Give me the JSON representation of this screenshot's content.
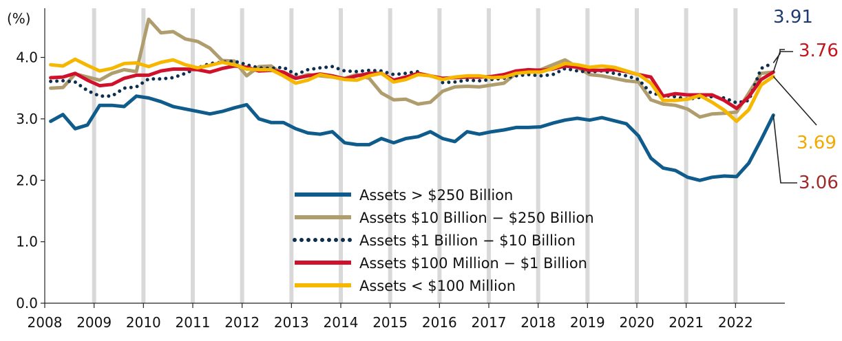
{
  "chart_data": {
    "type": "line",
    "unit_label": "(%)",
    "xlim": [
      2008,
      2023
    ],
    "ylim": [
      0,
      4.8
    ],
    "x_ticks": [
      "2008",
      "2009",
      "2010",
      "2011",
      "2012",
      "2013",
      "2014",
      "2015",
      "2016",
      "2017",
      "2018",
      "2019",
      "2020",
      "2021",
      "2022"
    ],
    "y_ticks": [
      "0.0",
      "1.0",
      "2.0",
      "3.0",
      "4.0"
    ],
    "series": [
      {
        "name": "Assets > $250 Billion",
        "color": "#0f5c8c",
        "style": "solid",
        "end_label": "3.06",
        "end_label_color": "#9e2b2b",
        "values": [
          2.96,
          3.07,
          2.84,
          2.9,
          3.22,
          3.22,
          3.2,
          3.37,
          3.34,
          3.28,
          3.2,
          3.16,
          3.12,
          3.08,
          3.12,
          3.18,
          3.23,
          3.0,
          2.94,
          2.94,
          2.84,
          2.77,
          2.75,
          2.79,
          2.61,
          2.58,
          2.58,
          2.68,
          2.61,
          2.68,
          2.71,
          2.79,
          2.68,
          2.63,
          2.79,
          2.75,
          2.79,
          2.82,
          2.86,
          2.86,
          2.87,
          2.93,
          2.98,
          3.01,
          2.98,
          3.02,
          2.97,
          2.92,
          2.72,
          2.36,
          2.2,
          2.16,
          2.05,
          2.0,
          2.05,
          2.07,
          2.06,
          2.28,
          2.66,
          3.06
        ]
      },
      {
        "name": "Assets  $10 Billion − $250 Billion",
        "color": "#b09d6e",
        "style": "solid",
        "values": [
          3.5,
          3.51,
          3.73,
          3.68,
          3.63,
          3.74,
          3.8,
          3.77,
          4.62,
          4.4,
          4.42,
          4.3,
          4.26,
          4.15,
          3.95,
          3.94,
          3.7,
          3.85,
          3.86,
          3.72,
          3.66,
          3.72,
          3.7,
          3.68,
          3.66,
          3.72,
          3.66,
          3.42,
          3.31,
          3.32,
          3.24,
          3.27,
          3.45,
          3.52,
          3.53,
          3.52,
          3.55,
          3.58,
          3.74,
          3.78,
          3.8,
          3.88,
          3.96,
          3.84,
          3.72,
          3.7,
          3.66,
          3.62,
          3.6,
          3.31,
          3.24,
          3.22,
          3.16,
          3.03,
          3.08,
          3.09,
          3.11,
          3.42,
          3.74,
          3.76
        ]
      },
      {
        "name": "Assets  $1 Billion − $10 Billion",
        "color": "#0d2f4d",
        "style": "dotted",
        "end_label": "3.91",
        "end_label_color": "#1f3a6e",
        "values": [
          3.61,
          3.62,
          3.6,
          3.46,
          3.37,
          3.37,
          3.5,
          3.52,
          3.65,
          3.65,
          3.67,
          3.74,
          3.83,
          3.9,
          3.92,
          3.94,
          3.88,
          3.83,
          3.82,
          3.84,
          3.72,
          3.8,
          3.83,
          3.85,
          3.78,
          3.77,
          3.79,
          3.78,
          3.72,
          3.74,
          3.77,
          null,
          3.59,
          3.6,
          3.63,
          3.62,
          3.64,
          3.66,
          3.7,
          3.72,
          3.7,
          3.72,
          3.82,
          3.78,
          3.76,
          3.78,
          3.74,
          3.7,
          3.64,
          3.42,
          3.38,
          3.36,
          3.32,
          3.35,
          3.36,
          3.34,
          3.26,
          3.3,
          3.82,
          3.91
        ]
      },
      {
        "name": "Assets  $100 Million − $1 Billion",
        "color": "#d0112b",
        "style": "solid",
        "end_label": "3.76",
        "end_label_color": "#c4161c",
        "values": [
          3.67,
          3.68,
          3.74,
          3.63,
          3.54,
          3.56,
          3.66,
          3.71,
          3.71,
          3.78,
          3.81,
          3.81,
          3.8,
          3.76,
          3.82,
          3.86,
          3.84,
          3.78,
          3.79,
          3.76,
          3.66,
          3.7,
          3.73,
          3.7,
          3.65,
          3.7,
          3.74,
          3.74,
          3.63,
          3.68,
          3.74,
          3.7,
          3.66,
          3.67,
          3.68,
          3.68,
          3.69,
          3.72,
          3.78,
          3.8,
          3.79,
          3.81,
          3.86,
          3.84,
          3.79,
          3.79,
          3.8,
          3.77,
          3.72,
          3.68,
          3.37,
          3.41,
          3.39,
          3.39,
          3.39,
          3.3,
          3.17,
          3.36,
          3.64,
          3.76
        ]
      },
      {
        "name": "Assets < $100 Million",
        "color": "#f5b700",
        "style": "solid",
        "end_label": "3.69",
        "end_label_color": "#f2a900",
        "values": [
          3.88,
          3.86,
          3.97,
          3.87,
          3.78,
          3.82,
          3.9,
          3.91,
          3.85,
          3.92,
          3.96,
          3.88,
          3.83,
          3.87,
          3.92,
          3.88,
          3.81,
          3.8,
          3.8,
          3.7,
          3.58,
          3.63,
          3.72,
          3.68,
          3.64,
          3.63,
          3.7,
          3.74,
          3.6,
          3.64,
          3.72,
          3.7,
          3.64,
          3.68,
          3.7,
          3.7,
          3.67,
          3.68,
          3.74,
          3.76,
          3.76,
          3.82,
          3.9,
          3.88,
          3.84,
          3.86,
          3.84,
          3.78,
          3.72,
          3.58,
          3.3,
          3.3,
          3.32,
          3.38,
          3.27,
          3.14,
          2.96,
          3.15,
          3.55,
          3.69
        ]
      }
    ]
  }
}
